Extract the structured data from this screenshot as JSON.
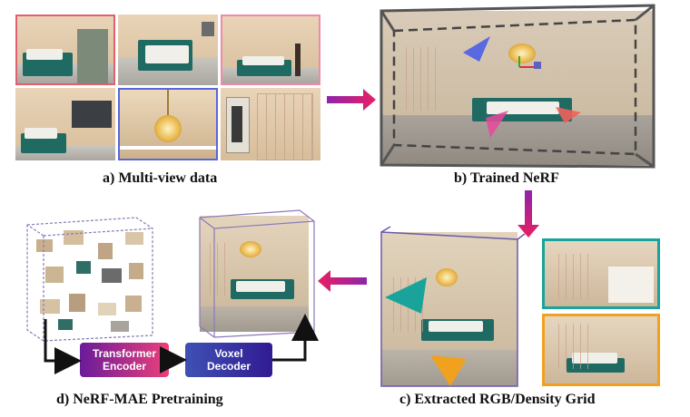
{
  "captions": {
    "a": "a) Multi-view data",
    "b": "b) Trained NeRF",
    "c": "c) Extracted RGB/Density Grid",
    "d": "d) NeRF-MAE Pretraining"
  },
  "blocks": {
    "encoder_line1": "Transformer",
    "encoder_line2": "Encoder",
    "decoder_line1": "Voxel",
    "decoder_line2": "Decoder"
  },
  "colors": {
    "arrow_start": "#8e24aa",
    "arrow_end": "#e91e63",
    "encoder_start": "#6a1b9a",
    "encoder_end": "#ec407a",
    "decoder_start": "#3f51b5",
    "decoder_end": "#311b92",
    "teal_frame": "#1aa39a",
    "orange_frame": "#f0a11e",
    "blue_frame": "#5a67d8",
    "pink_frame": "#f08aa8",
    "red_frame": "#e06070"
  }
}
